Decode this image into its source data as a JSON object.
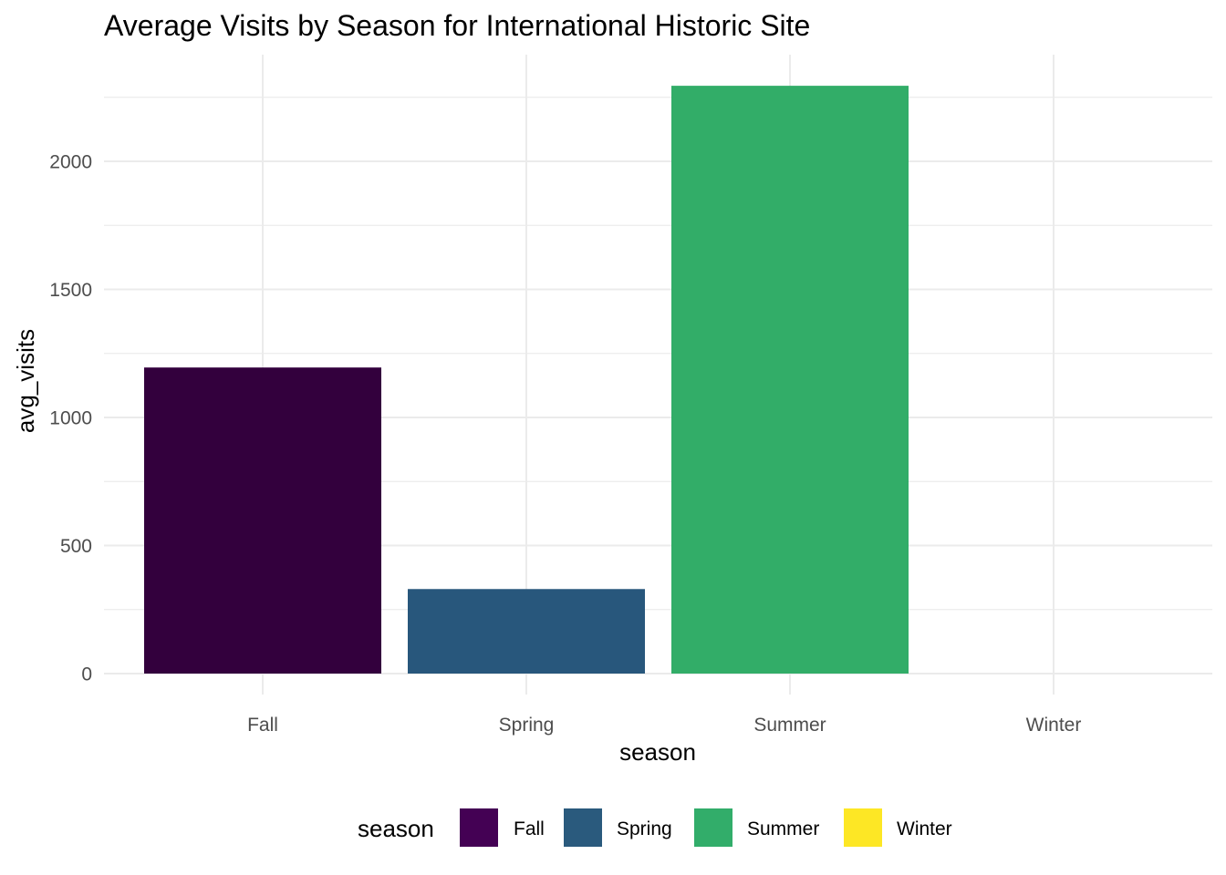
{
  "chart_data": {
    "type": "bar",
    "title": "Average Visits by Season for International Historic Site",
    "xlabel": "season",
    "ylabel": "avg_visits",
    "categories": [
      "Fall",
      "Spring",
      "Summer",
      "Winter"
    ],
    "values": [
      1195,
      330,
      2295,
      0
    ],
    "colors": [
      "#440154",
      "#2a5a7d",
      "#32ad6a",
      "#fde725"
    ],
    "bar_colors": [
      "#33003d",
      "#28577c",
      "#32ad68",
      "#fde725"
    ],
    "ylim": [
      0,
      2400
    ],
    "y_ticks": [
      0,
      500,
      1000,
      1500,
      2000
    ],
    "y_tick_labels": [
      "0",
      "500",
      "1000",
      "1500",
      "2000"
    ],
    "grid": true,
    "legend": {
      "title": "season",
      "position": "bottom",
      "items": [
        "Fall",
        "Spring",
        "Summer",
        "Winter"
      ]
    }
  }
}
